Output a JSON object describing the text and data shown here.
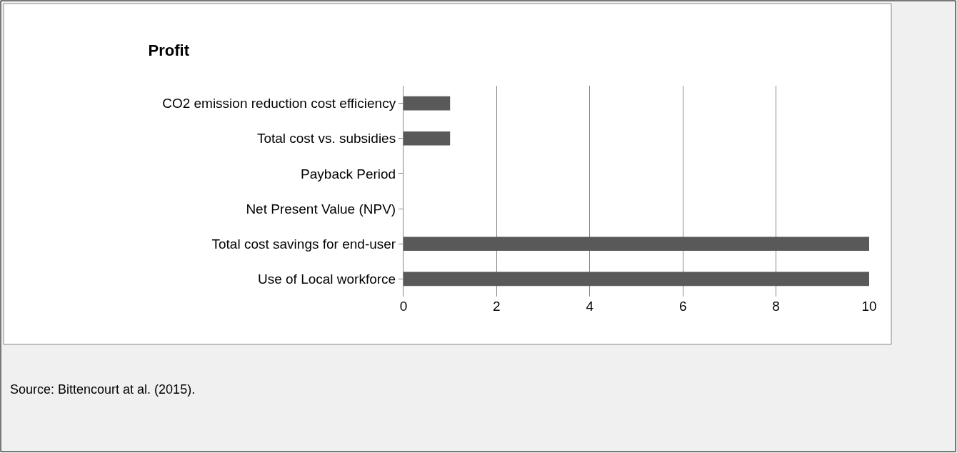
{
  "chart_data": {
    "type": "bar",
    "orientation": "horizontal",
    "title": "Profit",
    "categories": [
      "CO2 emission reduction cost efficiency",
      "Total cost vs. subsidies",
      "Payback Period",
      "Net Present Value (NPV)",
      "Total cost savings for end-user",
      "Use of Local workforce"
    ],
    "values": [
      1,
      1,
      0,
      0,
      10,
      10
    ],
    "color": "#595959",
    "xlim": [
      0,
      10
    ],
    "xticks": [
      0,
      2,
      4,
      6,
      8,
      10
    ],
    "grid": "x",
    "annotations": [
      "Source: Bittencourt at al. (2015)."
    ]
  }
}
